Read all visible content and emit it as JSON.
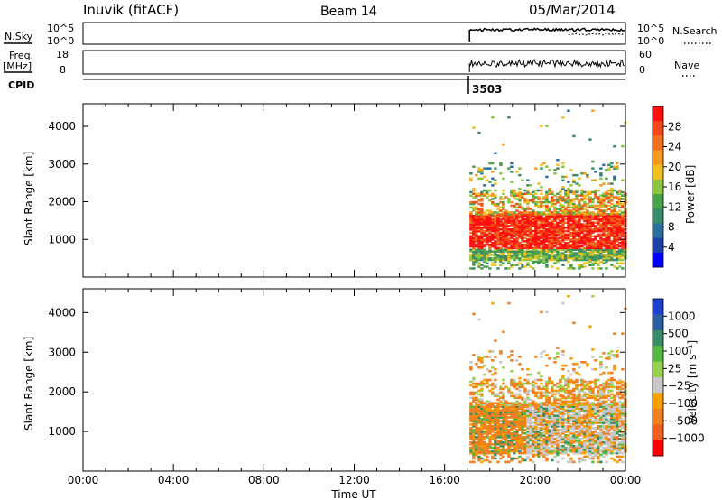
{
  "header": {
    "station": "Inuvik (fitACF)",
    "beam": "Beam 14",
    "date": "05/Mar/2014"
  },
  "top_panels": {
    "nsky_label": "N.Sky",
    "nsky_ticks": [
      "10^5",
      "10^0"
    ],
    "nsearch_label": "N.Search",
    "freq_label": "Freq.",
    "freq_unit": "[MHz]",
    "freq_ticks": [
      "18",
      "8"
    ],
    "nave_label": "Nave",
    "nave_ticks": [
      "60",
      "0"
    ],
    "cpid_label": "CPID",
    "cpid_value": "3503"
  },
  "colors": {
    "power_scale": [
      "#0000ff",
      "#1f3fa8",
      "#2d6e9a",
      "#3d8a6a",
      "#4aa24a",
      "#8cc63f",
      "#f0c020",
      "#f79a1e",
      "#f07020",
      "#f04818",
      "#ff1010"
    ],
    "velocity_scale": [
      "#1f3fd0",
      "#2d5fa0",
      "#3a8a68",
      "#56b840",
      "#9ad050",
      "#c8c8c8",
      "#f7a000",
      "#f08020",
      "#f06020",
      "#ff0000"
    ]
  },
  "chart_data": [
    {
      "type": "heatmap",
      "name": "power",
      "xlabel": "",
      "ylabel": "Slant Range [km]",
      "x_ticks": [
        "00:00",
        "04:00",
        "08:00",
        "12:00",
        "16:00",
        "20:00",
        "00:00"
      ],
      "y_ticks": [
        1000,
        2000,
        3000,
        4000
      ],
      "xlim": [
        0,
        24
      ],
      "ylim": [
        0,
        4600
      ],
      "colorbar_label": "Power [dB]",
      "colorbar_ticks": [
        4,
        8,
        12,
        16,
        20,
        24,
        28
      ],
      "colorbar_range": [
        0,
        32
      ]
    },
    {
      "type": "heatmap",
      "name": "velocity",
      "xlabel": "Time UT",
      "ylabel": "Slant Range [km]",
      "x_ticks": [
        "00:00",
        "04:00",
        "08:00",
        "12:00",
        "16:00",
        "20:00",
        "00:00"
      ],
      "y_ticks": [
        1000,
        2000,
        3000,
        4000
      ],
      "xlim": [
        0,
        24
      ],
      "ylim": [
        0,
        4600
      ],
      "colorbar_label": "Velocity [m s⁻¹]",
      "colorbar_ticks": [
        "1000",
        "500",
        "100",
        "25",
        "−25",
        "−100",
        "−500",
        "−1000"
      ]
    }
  ]
}
